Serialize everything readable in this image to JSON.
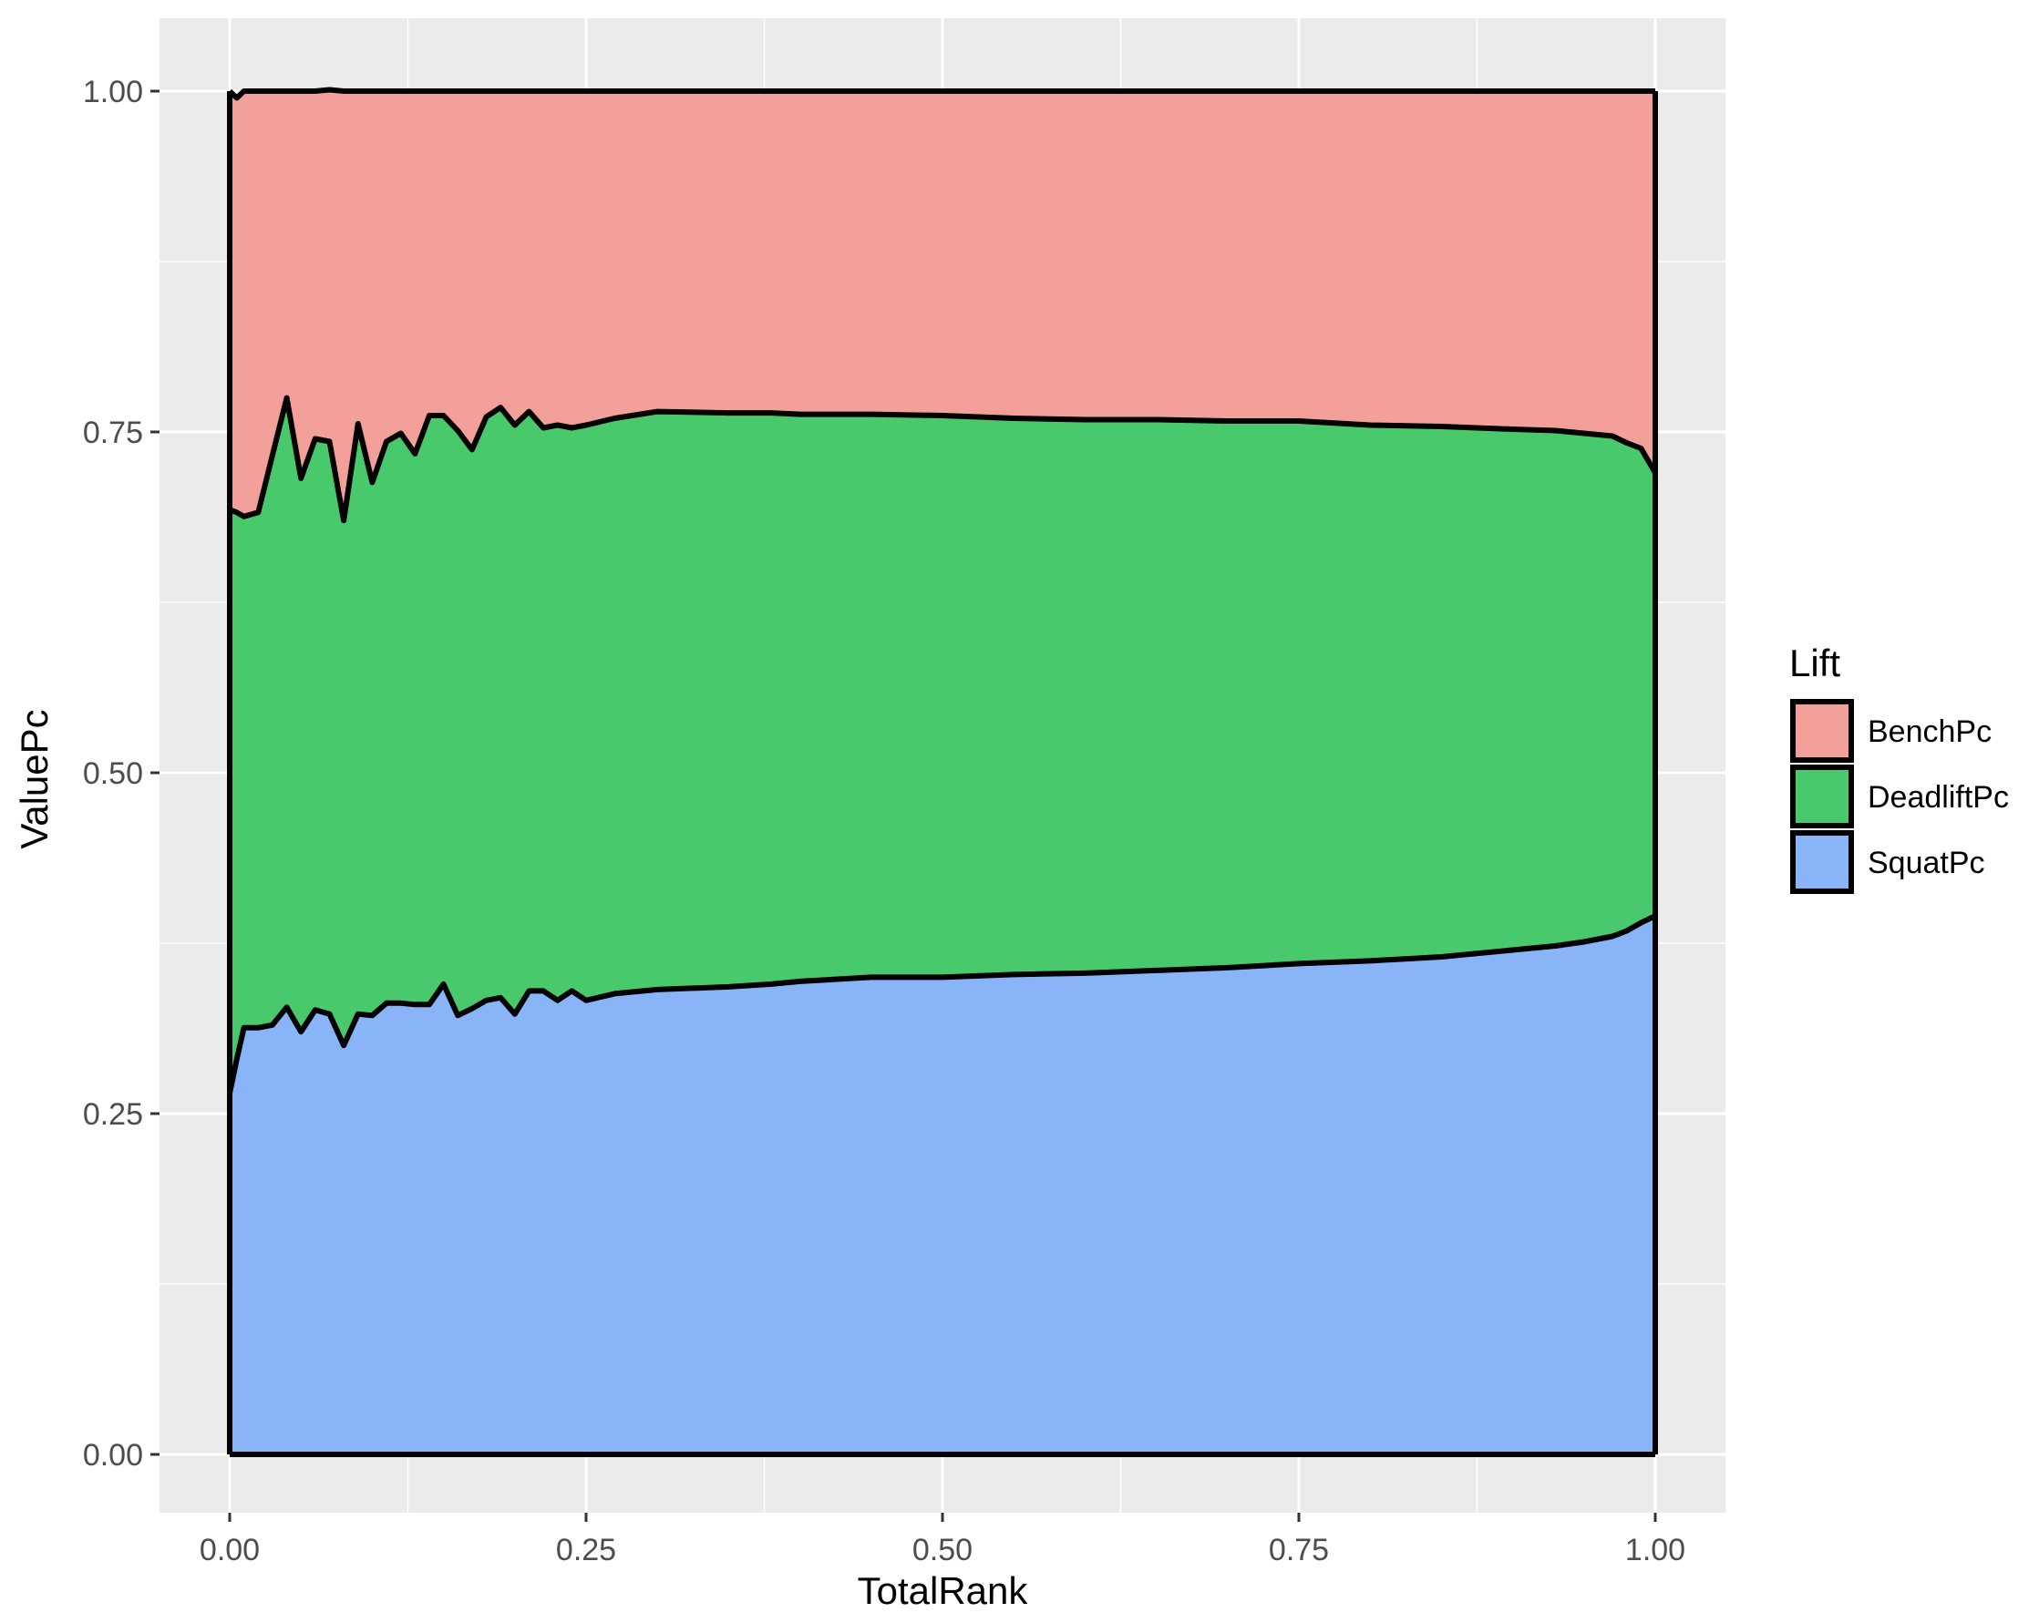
{
  "chart_data": {
    "type": "area",
    "stacked": true,
    "xlabel": "TotalRank",
    "ylabel": "ValuePc",
    "xlim": [
      0,
      1
    ],
    "ylim": [
      0,
      1
    ],
    "x_ticks": [
      "0.00",
      "0.25",
      "0.50",
      "0.75",
      "1.00"
    ],
    "y_ticks": [
      "0.00",
      "0.25",
      "0.50",
      "0.75",
      "1.00"
    ],
    "grid": true,
    "legend": {
      "title": "Lift",
      "placement": "right",
      "entries": [
        "BenchPc",
        "DeadliftPc",
        "SquatPc"
      ]
    },
    "colors": {
      "BenchPc": "#f4a09a",
      "DeadliftPc": "#47c96c",
      "SquatPc": "#89b4f8",
      "outline": "#000000",
      "panel_background": "#ebebeb",
      "grid_line": "#ffffff"
    },
    "stack_order_bottom_to_top": [
      "SquatPc",
      "DeadliftPc",
      "BenchPc"
    ],
    "x": [
      0,
      0.005,
      0.01,
      0.02,
      0.03,
      0.04,
      0.05,
      0.06,
      0.07,
      0.08,
      0.09,
      0.1,
      0.11,
      0.12,
      0.13,
      0.14,
      0.15,
      0.16,
      0.17,
      0.18,
      0.19,
      0.2,
      0.21,
      0.22,
      0.23,
      0.24,
      0.25,
      0.27,
      0.3,
      0.35,
      0.38,
      0.4,
      0.45,
      0.5,
      0.55,
      0.6,
      0.65,
      0.7,
      0.75,
      0.8,
      0.85,
      0.9,
      0.93,
      0.95,
      0.97,
      0.98,
      0.99,
      1.0
    ],
    "series": [
      {
        "name": "SquatPc",
        "values": [
          0.265,
          0.29,
          0.313,
          0.313,
          0.315,
          0.328,
          0.31,
          0.326,
          0.323,
          0.3,
          0.323,
          0.322,
          0.331,
          0.331,
          0.33,
          0.33,
          0.345,
          0.322,
          0.327,
          0.333,
          0.335,
          0.323,
          0.34,
          0.34,
          0.333,
          0.34,
          0.333,
          0.338,
          0.341,
          0.343,
          0.345,
          0.347,
          0.35,
          0.35,
          0.352,
          0.353,
          0.355,
          0.357,
          0.36,
          0.362,
          0.365,
          0.37,
          0.373,
          0.376,
          0.38,
          0.384,
          0.39,
          0.395
        ]
      },
      {
        "name": "DeadliftPc",
        "values": [
          0.428,
          0.401,
          0.375,
          0.378,
          0.418,
          0.447,
          0.406,
          0.419,
          0.42,
          0.385,
          0.433,
          0.391,
          0.412,
          0.418,
          0.404,
          0.432,
          0.417,
          0.429,
          0.41,
          0.428,
          0.433,
          0.432,
          0.425,
          0.413,
          0.422,
          0.413,
          0.422,
          0.422,
          0.424,
          0.421,
          0.419,
          0.416,
          0.413,
          0.412,
          0.408,
          0.406,
          0.404,
          0.401,
          0.398,
          0.393,
          0.389,
          0.382,
          0.378,
          0.373,
          0.367,
          0.358,
          0.348,
          0.325
        ]
      },
      {
        "name": "BenchPc",
        "values": [
          0.307,
          0.304,
          0.312,
          0.309,
          0.267,
          0.225,
          0.284,
          0.255,
          0.258,
          0.315,
          0.244,
          0.287,
          0.257,
          0.251,
          0.266,
          0.238,
          0.238,
          0.249,
          0.263,
          0.239,
          0.232,
          0.245,
          0.235,
          0.247,
          0.245,
          0.247,
          0.245,
          0.24,
          0.235,
          0.236,
          0.236,
          0.237,
          0.237,
          0.238,
          0.24,
          0.241,
          0.241,
          0.242,
          0.242,
          0.245,
          0.246,
          0.248,
          0.249,
          0.251,
          0.253,
          0.258,
          0.262,
          0.28
        ]
      }
    ]
  }
}
